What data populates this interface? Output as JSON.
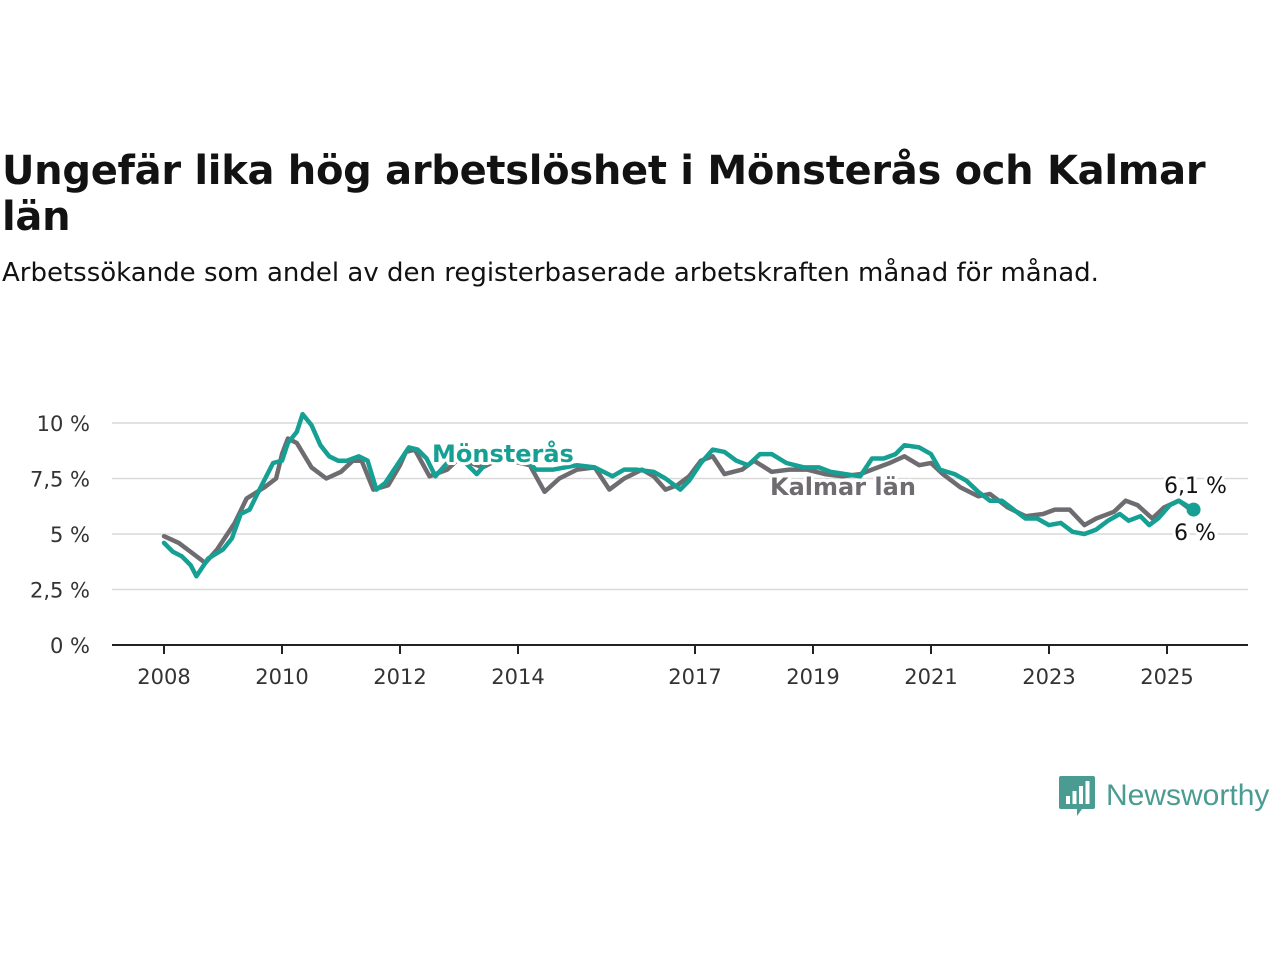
{
  "title": "Ungefär lika hög arbetslöshet i Mönsterås och Kalmar län",
  "subtitle": "Arbetssökande som andel av den registerbaserade arbetskraften månad för månad.",
  "brand": "Newsworthy",
  "chart_data": {
    "type": "line",
    "title": "Ungefär lika hög arbetslöshet i Mönsterås och Kalmar län",
    "subtitle": "Arbetssökande som andel av den registerbaserade arbetskraften månad för månad.",
    "xlabel": "",
    "ylabel": "",
    "ylim": [
      0,
      10
    ],
    "xlim": [
      2008,
      2025.5
    ],
    "x_ticks": [
      2008,
      2010,
      2012,
      2014,
      2017,
      2019,
      2021,
      2023,
      2025
    ],
    "x_tick_labels": [
      "2008",
      "2010",
      "2012",
      "2014",
      "2017",
      "2019",
      "2021",
      "2023",
      "2025"
    ],
    "y_ticks": [
      0,
      2.5,
      5,
      7.5,
      10
    ],
    "y_tick_labels": [
      "0 %",
      "2,5 %",
      "5 %",
      "7,5 %",
      "10 %"
    ],
    "grid": true,
    "legend": "labels placed on lines",
    "series": [
      {
        "name": "Kalmar län",
        "color": "#6e6c70",
        "points": [
          [
            2008.0,
            4.9
          ],
          [
            2008.25,
            4.6
          ],
          [
            2008.5,
            4.1
          ],
          [
            2008.7,
            3.7
          ],
          [
            2008.9,
            4.3
          ],
          [
            2009.2,
            5.5
          ],
          [
            2009.4,
            6.6
          ],
          [
            2009.7,
            7.1
          ],
          [
            2009.9,
            7.5
          ],
          [
            2010.0,
            8.6
          ],
          [
            2010.1,
            9.3
          ],
          [
            2010.25,
            9.1
          ],
          [
            2010.5,
            8.0
          ],
          [
            2010.75,
            7.5
          ],
          [
            2011.0,
            7.8
          ],
          [
            2011.2,
            8.3
          ],
          [
            2011.35,
            8.3
          ],
          [
            2011.55,
            7.0
          ],
          [
            2011.8,
            7.2
          ],
          [
            2012.0,
            8.1
          ],
          [
            2012.1,
            8.7
          ],
          [
            2012.25,
            8.8
          ],
          [
            2012.5,
            7.6
          ],
          [
            2012.8,
            7.9
          ],
          [
            2013.0,
            8.4
          ],
          [
            2013.4,
            8.0
          ],
          [
            2013.7,
            8.4
          ],
          [
            2014.2,
            8.1
          ],
          [
            2014.45,
            6.9
          ],
          [
            2014.7,
            7.5
          ],
          [
            2015.0,
            7.9
          ],
          [
            2015.3,
            8.0
          ],
          [
            2015.55,
            7.0
          ],
          [
            2015.8,
            7.5
          ],
          [
            2016.1,
            7.9
          ],
          [
            2016.3,
            7.6
          ],
          [
            2016.5,
            7.0
          ],
          [
            2016.7,
            7.2
          ],
          [
            2016.9,
            7.6
          ],
          [
            2017.1,
            8.3
          ],
          [
            2017.3,
            8.5
          ],
          [
            2017.5,
            7.7
          ],
          [
            2017.8,
            7.9
          ],
          [
            2018.0,
            8.3
          ],
          [
            2018.3,
            7.8
          ],
          [
            2018.6,
            7.9
          ],
          [
            2018.9,
            7.9
          ],
          [
            2019.2,
            7.7
          ],
          [
            2019.5,
            7.6
          ],
          [
            2019.8,
            7.7
          ],
          [
            2020.0,
            7.9
          ],
          [
            2020.3,
            8.2
          ],
          [
            2020.55,
            8.5
          ],
          [
            2020.8,
            8.1
          ],
          [
            2021.0,
            8.2
          ],
          [
            2021.2,
            7.7
          ],
          [
            2021.5,
            7.1
          ],
          [
            2021.8,
            6.7
          ],
          [
            2022.0,
            6.8
          ],
          [
            2022.3,
            6.2
          ],
          [
            2022.6,
            5.8
          ],
          [
            2022.9,
            5.9
          ],
          [
            2023.1,
            6.1
          ],
          [
            2023.35,
            6.1
          ],
          [
            2023.6,
            5.4
          ],
          [
            2023.8,
            5.7
          ],
          [
            2024.1,
            6.0
          ],
          [
            2024.3,
            6.5
          ],
          [
            2024.5,
            6.3
          ],
          [
            2024.75,
            5.7
          ],
          [
            2024.95,
            6.2
          ],
          [
            2025.2,
            6.5
          ],
          [
            2025.45,
            6.0
          ]
        ],
        "last_value_label": "6 %"
      },
      {
        "name": "Mönsterås",
        "color": "#16a094",
        "points": [
          [
            2008.0,
            4.6
          ],
          [
            2008.15,
            4.2
          ],
          [
            2008.3,
            4.0
          ],
          [
            2008.45,
            3.6
          ],
          [
            2008.55,
            3.1
          ],
          [
            2008.75,
            3.9
          ],
          [
            2009.0,
            4.3
          ],
          [
            2009.15,
            4.8
          ],
          [
            2009.3,
            5.9
          ],
          [
            2009.45,
            6.1
          ],
          [
            2009.6,
            6.9
          ],
          [
            2009.85,
            8.2
          ],
          [
            2010.0,
            8.3
          ],
          [
            2010.1,
            9.1
          ],
          [
            2010.25,
            9.6
          ],
          [
            2010.35,
            10.4
          ],
          [
            2010.5,
            9.9
          ],
          [
            2010.65,
            9.0
          ],
          [
            2010.8,
            8.5
          ],
          [
            2010.95,
            8.3
          ],
          [
            2011.1,
            8.3
          ],
          [
            2011.3,
            8.5
          ],
          [
            2011.45,
            8.3
          ],
          [
            2011.6,
            7.0
          ],
          [
            2011.75,
            7.3
          ],
          [
            2012.0,
            8.3
          ],
          [
            2012.15,
            8.9
          ],
          [
            2012.3,
            8.8
          ],
          [
            2012.45,
            8.4
          ],
          [
            2012.6,
            7.6
          ],
          [
            2012.8,
            8.2
          ],
          [
            2013.0,
            8.5
          ],
          [
            2013.3,
            7.7
          ],
          [
            2013.5,
            8.3
          ],
          [
            2013.8,
            8.4
          ],
          [
            2014.1,
            8.5
          ],
          [
            2014.3,
            7.9
          ],
          [
            2014.6,
            7.9
          ],
          [
            2015.0,
            8.1
          ],
          [
            2015.3,
            8.0
          ],
          [
            2015.6,
            7.6
          ],
          [
            2015.8,
            7.9
          ],
          [
            2016.0,
            7.9
          ],
          [
            2016.3,
            7.8
          ],
          [
            2016.5,
            7.5
          ],
          [
            2016.75,
            7.0
          ],
          [
            2016.9,
            7.4
          ],
          [
            2017.1,
            8.2
          ],
          [
            2017.3,
            8.8
          ],
          [
            2017.5,
            8.7
          ],
          [
            2017.7,
            8.3
          ],
          [
            2017.9,
            8.1
          ],
          [
            2018.1,
            8.6
          ],
          [
            2018.3,
            8.6
          ],
          [
            2018.55,
            8.2
          ],
          [
            2018.85,
            8.0
          ],
          [
            2019.1,
            8.0
          ],
          [
            2019.3,
            7.8
          ],
          [
            2019.55,
            7.7
          ],
          [
            2019.8,
            7.6
          ],
          [
            2020.0,
            8.4
          ],
          [
            2020.2,
            8.4
          ],
          [
            2020.4,
            8.6
          ],
          [
            2020.55,
            9.0
          ],
          [
            2020.8,
            8.9
          ],
          [
            2021.0,
            8.6
          ],
          [
            2021.15,
            7.9
          ],
          [
            2021.4,
            7.7
          ],
          [
            2021.6,
            7.4
          ],
          [
            2021.8,
            6.9
          ],
          [
            2022.0,
            6.5
          ],
          [
            2022.2,
            6.5
          ],
          [
            2022.4,
            6.1
          ],
          [
            2022.6,
            5.7
          ],
          [
            2022.8,
            5.7
          ],
          [
            2023.0,
            5.4
          ],
          [
            2023.2,
            5.5
          ],
          [
            2023.4,
            5.1
          ],
          [
            2023.6,
            5.0
          ],
          [
            2023.8,
            5.2
          ],
          [
            2024.0,
            5.6
          ],
          [
            2024.2,
            5.9
          ],
          [
            2024.35,
            5.6
          ],
          [
            2024.55,
            5.8
          ],
          [
            2024.7,
            5.4
          ],
          [
            2024.85,
            5.7
          ],
          [
            2025.05,
            6.3
          ],
          [
            2025.2,
            6.5
          ],
          [
            2025.45,
            6.1
          ]
        ],
        "last_value_label": "6,1 %"
      }
    ]
  }
}
